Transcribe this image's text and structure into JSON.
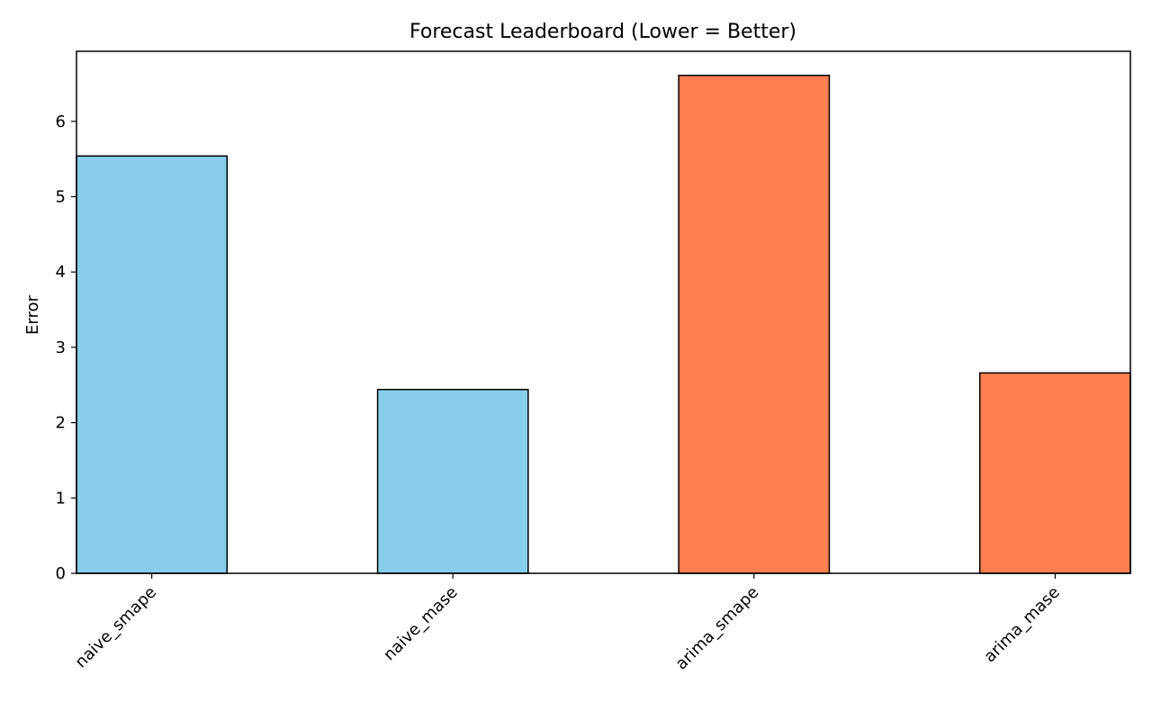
{
  "chart_data": {
    "type": "bar",
    "title": "Forecast Leaderboard (Lower = Better)",
    "xlabel": "",
    "ylabel": "Error",
    "categories": [
      "naive_smape",
      "naive_mase",
      "arima_smape",
      "arima_mase"
    ],
    "values": [
      5.54,
      2.44,
      6.61,
      2.66
    ],
    "bar_colors": [
      "#87CEEB",
      "#87CEEB",
      "#FF7F50",
      "#FF7F50"
    ],
    "edge_color": "#000000",
    "ylim": [
      0,
      6.93
    ],
    "yticks": [
      0,
      1,
      2,
      3,
      4,
      5,
      6
    ],
    "grid": false,
    "legend": "none"
  }
}
